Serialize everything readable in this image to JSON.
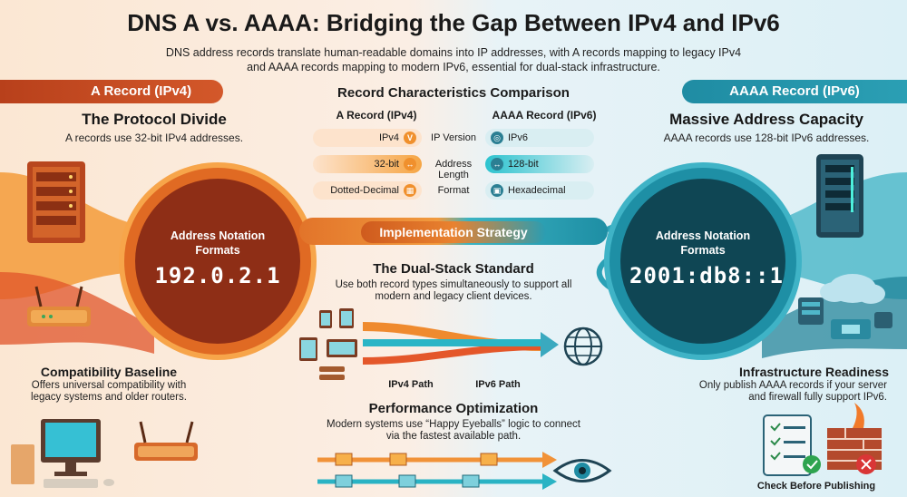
{
  "title": "DNS A vs. AAAA: Bridging the Gap Between IPv4 and IPv6",
  "subtitle": "DNS address records translate human-readable domains into IP addresses, with A records mapping to legacy IPv4 and AAAA records mapping to modern IPv6, essential for dual-stack infrastructure.",
  "left": {
    "ribbon": "A Record (IPv4)",
    "heading": "The Protocol Divide",
    "desc": "A records use 32-bit IPv4 addresses.",
    "circle_label": "Address Notation Formats",
    "address": "192.0.2.1",
    "compat_heading": "Compatibility Baseline",
    "compat_desc": "Offers universal compatibility with legacy systems and older routers."
  },
  "right": {
    "ribbon": "AAAA Record (IPv6)",
    "heading": "Massive Address Capacity",
    "desc": "AAAA records use 128-bit IPv6 addresses.",
    "circle_label": "Address Notation Formats",
    "address": "2001:db8::1",
    "infra_heading": "Infrastructure Readiness",
    "infra_desc": "Only publish AAAA records if your server and firewall fully support IPv6.",
    "check_label": "Check Before Publishing"
  },
  "comparison": {
    "title": "Record Characteristics Comparison",
    "col_a": "A Record (IPv4)",
    "col_b": "AAAA Record (IPv6)",
    "rows": [
      {
        "a": "IPv4",
        "label": "IP Version",
        "b": "IPv6"
      },
      {
        "a": "32-bit",
        "label": "Address Length",
        "b": "128-bit"
      },
      {
        "a": "Dotted-Decimal",
        "label": "Format",
        "b": "Hexadecimal"
      }
    ]
  },
  "center": {
    "band": "Implementation Strategy",
    "dual_heading": "The Dual-Stack Standard",
    "dual_desc": "Use both record types simultaneously to support all modern and legacy client devices.",
    "path_v4": "IPv4 Path",
    "path_v6": "IPv6 Path",
    "perf_heading": "Performance Optimization",
    "perf_desc": "Modern systems use “Happy Eyeballs” logic to connect via the fastest available path."
  },
  "icons": {
    "left_top": "server-rack-icon",
    "left_mid": "router-icon",
    "left_bottom": "desktop-computer-icon",
    "left_bottom_2": "wifi-router-icon",
    "right_top": "modern-server-icon",
    "right_mid": "cloud-datacenter-icon",
    "right_bottom": "checklist-icon",
    "right_bottom_2": "firewall-icon",
    "globe": "globe-icon",
    "eye": "eye-icon"
  },
  "colors": {
    "ipv4_accent": "#e06a23",
    "ipv6_accent": "#1e8fa5",
    "ipv4_dark": "#8e2e16",
    "ipv6_dark": "#0f4654"
  }
}
